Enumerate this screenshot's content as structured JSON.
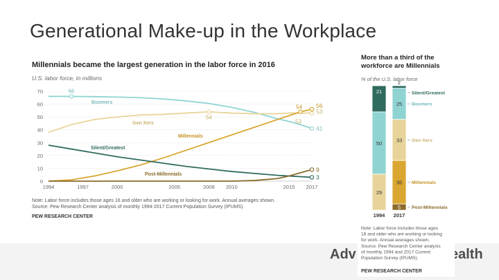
{
  "slide": {
    "title": "Generational Make-up in the Workplace",
    "footer_brand": "Adv",
    "footer_brand_end": "ealth"
  },
  "colors": {
    "boomers": "#8fd4d3",
    "genx": "#e8d49a",
    "millennials": "#d9a731",
    "silent": "#2f6b5f",
    "post_millennials": "#8a6b2a",
    "grid": "#dddddd",
    "text": "#333333"
  },
  "chart_data": [
    {
      "type": "line",
      "title": "Millennials became the largest generation in the labor force in 2016",
      "subtitle": "U.S. labor force, in millions",
      "xlabel": "",
      "ylabel": "",
      "xlim": [
        1994,
        2017
      ],
      "ylim": [
        0,
        70
      ],
      "yticks": [
        0,
        10,
        20,
        30,
        40,
        50,
        60,
        70
      ],
      "xticks": [
        1994,
        1997,
        2000,
        2005,
        2008,
        2010,
        2015,
        2017
      ],
      "series": [
        {
          "name": "Boomers",
          "key": "boomers",
          "x": [
            1994,
            1996,
            1998,
            2000,
            2002,
            2004,
            2006,
            2008,
            2010,
            2012,
            2014,
            2015,
            2016,
            2017
          ],
          "values": [
            66,
            66,
            65.8,
            65.5,
            65,
            64,
            62.5,
            60.5,
            57.5,
            53.5,
            48.5,
            46.5,
            44,
            41
          ],
          "start_label": "66",
          "end_label": "41"
        },
        {
          "name": "Gen Xers",
          "key": "genx",
          "x": [
            1994,
            1996,
            1998,
            2000,
            2002,
            2004,
            2006,
            2008,
            2010,
            2012,
            2014,
            2015,
            2016,
            2017
          ],
          "values": [
            38,
            44,
            48,
            50,
            51.5,
            52,
            53,
            54,
            53,
            52.5,
            52.5,
            53,
            53,
            53
          ],
          "mid_label": "54",
          "end_label": "53"
        },
        {
          "name": "Millennials",
          "key": "millennials",
          "x": [
            1994,
            1996,
            1998,
            2000,
            2002,
            2004,
            2006,
            2008,
            2010,
            2012,
            2014,
            2015,
            2016,
            2017
          ],
          "values": [
            0,
            1,
            4,
            8,
            12.5,
            18,
            24,
            30,
            36,
            42,
            48,
            51,
            54,
            56
          ],
          "mid_label": "54",
          "end_label": "56"
        },
        {
          "name": "Silent/Greatest",
          "key": "silent",
          "x": [
            1994,
            1996,
            1998,
            2000,
            2002,
            2004,
            2006,
            2008,
            2010,
            2012,
            2014,
            2015,
            2016,
            2017
          ],
          "values": [
            28,
            25,
            22,
            19,
            16.5,
            14,
            11.5,
            9.5,
            7.5,
            6,
            4.5,
            4,
            3.5,
            3
          ],
          "end_label": "3"
        },
        {
          "name": "Post-Millennials",
          "key": "post_millennials",
          "x": [
            1994,
            2010,
            2012,
            2014,
            2015,
            2016,
            2017
          ],
          "values": [
            0,
            0,
            0.5,
            2,
            4,
            6.5,
            9
          ],
          "end_label": "9"
        }
      ],
      "note": "Note: Labor force includes those ages 16 and older who are working or looking for work. Annual averages shown.",
      "source": "Source: Pew Research Center analysis of monthly 1994-2017 Current Population Survey (IPUMS).",
      "credit": "PEW RESEARCH CENTER"
    },
    {
      "type": "bar",
      "stacked": true,
      "title_lines": [
        "More than a third of the",
        "workforce are Millennials"
      ],
      "subtitle": "% of the U.S. labor force",
      "categories": [
        "1994",
        "2017"
      ],
      "ylim": [
        0,
        100
      ],
      "series": [
        {
          "name": "Post-Millennials",
          "key": "post_millennials",
          "values": [
            0,
            5
          ]
        },
        {
          "name": "Millennials",
          "key": "millennials",
          "values": [
            0,
            35
          ]
        },
        {
          "name": "Gen Xers",
          "key": "genx",
          "values": [
            29,
            33
          ]
        },
        {
          "name": "Boomers",
          "key": "boomers",
          "values": [
            50,
            25
          ]
        },
        {
          "name": "Silent/Greatest",
          "key": "silent",
          "values": [
            21,
            2
          ]
        }
      ],
      "note_lines": [
        "Note: Labor force includes those ages",
        "16 and older who are working or looking",
        "for work. Annual averages shown.",
        "Source: Pew Research Center analysis",
        "of monthly 1994 and 2017 Current",
        "Population Survey (IPUMS)."
      ],
      "credit": "PEW RESEARCH CENTER"
    }
  ]
}
